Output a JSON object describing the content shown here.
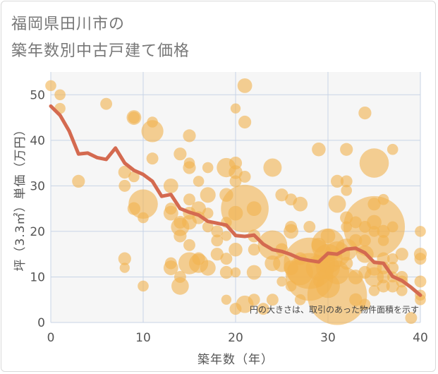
{
  "header": {
    "title_line1": "福岡県田川市の",
    "title_line2": "築年数別中古戸建て価格"
  },
  "chart_data": {
    "type": "scatter",
    "title": "福岡県田川市の築年数別中古戸建て価格",
    "xlabel": "築年数（年）",
    "ylabel": "坪（3.3㎡）単価（万円）",
    "xlim": [
      0,
      40
    ],
    "ylim": [
      0,
      55
    ],
    "xticks": [
      0,
      10,
      20,
      30,
      40
    ],
    "yticks": [
      0,
      10,
      20,
      30,
      40,
      50
    ],
    "grid": true,
    "note": "円の大きさは、取引のあった物件面積を示す",
    "colors": {
      "bubble": "#f2b24f",
      "trend": "#d46a50",
      "plot_bg": "#f6f6f6",
      "grid": "#c8d4e6"
    },
    "bubbles": [
      {
        "x": 0,
        "y": 52,
        "s": 1.2
      },
      {
        "x": 1,
        "y": 50,
        "s": 1.2
      },
      {
        "x": 1,
        "y": 47,
        "s": 1.2
      },
      {
        "x": 3,
        "y": 31,
        "s": 1.4
      },
      {
        "x": 6,
        "y": 48,
        "s": 1.3
      },
      {
        "x": 8,
        "y": 33,
        "s": 1.4
      },
      {
        "x": 8,
        "y": 30,
        "s": 1.3
      },
      {
        "x": 8,
        "y": 14,
        "s": 1.4
      },
      {
        "x": 8,
        "y": 12,
        "s": 1.1
      },
      {
        "x": 9,
        "y": 45,
        "s": 1.6
      },
      {
        "x": 9,
        "y": 45,
        "s": 1.3
      },
      {
        "x": 9,
        "y": 32,
        "s": 1.2
      },
      {
        "x": 9,
        "y": 25,
        "s": 1.4
      },
      {
        "x": 10,
        "y": 26,
        "s": 3.2
      },
      {
        "x": 10,
        "y": 23,
        "s": 1.2
      },
      {
        "x": 10,
        "y": 8,
        "s": 1.2
      },
      {
        "x": 11,
        "y": 44,
        "s": 1.2
      },
      {
        "x": 11,
        "y": 42,
        "s": 2.4
      },
      {
        "x": 11,
        "y": 36,
        "s": 1.3
      },
      {
        "x": 13,
        "y": 30,
        "s": 1.6
      },
      {
        "x": 13,
        "y": 25,
        "s": 1.3
      },
      {
        "x": 13,
        "y": 24,
        "s": 1.6
      },
      {
        "x": 13,
        "y": 13,
        "s": 1.3
      },
      {
        "x": 13,
        "y": 12,
        "s": 1.6
      },
      {
        "x": 14,
        "y": 37,
        "s": 1.4
      },
      {
        "x": 14,
        "y": 22,
        "s": 1.4
      },
      {
        "x": 14,
        "y": 21,
        "s": 2.0
      },
      {
        "x": 14,
        "y": 19,
        "s": 1.4
      },
      {
        "x": 14,
        "y": 10,
        "s": 1.3
      },
      {
        "x": 14,
        "y": 8,
        "s": 1.9
      },
      {
        "x": 15,
        "y": 41,
        "s": 1.4
      },
      {
        "x": 15,
        "y": 35,
        "s": 1.2
      },
      {
        "x": 15,
        "y": 34,
        "s": 1.4
      },
      {
        "x": 15,
        "y": 27,
        "s": 1.3
      },
      {
        "x": 15,
        "y": 24,
        "s": 1.4
      },
      {
        "x": 15,
        "y": 22,
        "s": 1.6
      },
      {
        "x": 15,
        "y": 17,
        "s": 1.3
      },
      {
        "x": 15,
        "y": 13,
        "s": 2.4
      },
      {
        "x": 16,
        "y": 31,
        "s": 1.2
      },
      {
        "x": 16,
        "y": 25,
        "s": 1.6
      },
      {
        "x": 16,
        "y": 23,
        "s": 1.4
      },
      {
        "x": 16,
        "y": 14,
        "s": 1.4
      },
      {
        "x": 16,
        "y": 13,
        "s": 2.1
      },
      {
        "x": 17,
        "y": 34,
        "s": 1.2
      },
      {
        "x": 17,
        "y": 28,
        "s": 1.7
      },
      {
        "x": 17,
        "y": 24,
        "s": 1.2
      },
      {
        "x": 17,
        "y": 21,
        "s": 1.2
      },
      {
        "x": 17,
        "y": 12,
        "s": 1.7
      },
      {
        "x": 18,
        "y": 20,
        "s": 1.3
      },
      {
        "x": 18,
        "y": 18,
        "s": 1.3
      },
      {
        "x": 18,
        "y": 15,
        "s": 1.4
      },
      {
        "x": 19,
        "y": 34,
        "s": 2.1
      },
      {
        "x": 19,
        "y": 28,
        "s": 1.5
      },
      {
        "x": 19,
        "y": 22,
        "s": 1.2
      },
      {
        "x": 19,
        "y": 19,
        "s": 1.1
      },
      {
        "x": 19,
        "y": 14,
        "s": 1.3
      },
      {
        "x": 19,
        "y": 11,
        "s": 1.4
      },
      {
        "x": 19,
        "y": 5,
        "s": 1.1
      },
      {
        "x": 20,
        "y": 47,
        "s": 1.1
      },
      {
        "x": 20,
        "y": 35,
        "s": 1.4
      },
      {
        "x": 20,
        "y": 33,
        "s": 1.5
      },
      {
        "x": 20,
        "y": 31,
        "s": 1.3
      },
      {
        "x": 20,
        "y": 24,
        "s": 1.6
      },
      {
        "x": 20,
        "y": 16,
        "s": 1.5
      },
      {
        "x": 20,
        "y": 11,
        "s": 1.1
      },
      {
        "x": 20,
        "y": 3,
        "s": 1.3
      },
      {
        "x": 21,
        "y": 52,
        "s": 1.6
      },
      {
        "x": 21,
        "y": 44,
        "s": 1.4
      },
      {
        "x": 21,
        "y": 32,
        "s": 1.3
      },
      {
        "x": 21,
        "y": 25,
        "s": 5.2
      },
      {
        "x": 21,
        "y": 4,
        "s": 1.9
      },
      {
        "x": 22,
        "y": 25,
        "s": 1.6
      },
      {
        "x": 22,
        "y": 19,
        "s": 1.4
      },
      {
        "x": 22,
        "y": 16,
        "s": 1.3
      },
      {
        "x": 22,
        "y": 11,
        "s": 1.6
      },
      {
        "x": 22,
        "y": 5,
        "s": 1.3
      },
      {
        "x": 23,
        "y": 3,
        "s": 1.3
      },
      {
        "x": 24,
        "y": 34,
        "s": 2.0
      },
      {
        "x": 24,
        "y": 17,
        "s": 3.2
      },
      {
        "x": 24,
        "y": 13,
        "s": 1.7
      },
      {
        "x": 24,
        "y": 5,
        "s": 1.3
      },
      {
        "x": 25,
        "y": 28,
        "s": 1.4
      },
      {
        "x": 25,
        "y": 16,
        "s": 1.4
      },
      {
        "x": 25,
        "y": 13,
        "s": 1.9
      },
      {
        "x": 25,
        "y": 9,
        "s": 1.1
      },
      {
        "x": 26,
        "y": 27,
        "s": 1.3
      },
      {
        "x": 26,
        "y": 21,
        "s": 1.3
      },
      {
        "x": 26,
        "y": 20,
        "s": 1.6
      },
      {
        "x": 26,
        "y": 12,
        "s": 1.6
      },
      {
        "x": 26,
        "y": 8,
        "s": 1.2
      },
      {
        "x": 27,
        "y": 26,
        "s": 1.6
      },
      {
        "x": 27,
        "y": 14,
        "s": 1.4
      },
      {
        "x": 27,
        "y": 11,
        "s": 2.8
      },
      {
        "x": 27,
        "y": 5,
        "s": 1.2
      },
      {
        "x": 28,
        "y": 21,
        "s": 1.3
      },
      {
        "x": 28,
        "y": 13,
        "s": 5.6
      },
      {
        "x": 28,
        "y": 10,
        "s": 5.2
      },
      {
        "x": 29,
        "y": 38,
        "s": 1.5
      },
      {
        "x": 29,
        "y": 17,
        "s": 1.6
      },
      {
        "x": 29,
        "y": 12,
        "s": 2.8
      },
      {
        "x": 29,
        "y": 9,
        "s": 1.2
      },
      {
        "x": 30,
        "y": 19,
        "s": 1.6
      },
      {
        "x": 30,
        "y": 17,
        "s": 3.6
      },
      {
        "x": 30,
        "y": 14,
        "s": 3.2
      },
      {
        "x": 30,
        "y": 12,
        "s": 2.6
      },
      {
        "x": 30,
        "y": 8,
        "s": 2.6
      },
      {
        "x": 31,
        "y": 31,
        "s": 1.4
      },
      {
        "x": 31,
        "y": 26,
        "s": 1.9
      },
      {
        "x": 31,
        "y": 15,
        "s": 2.8
      },
      {
        "x": 31,
        "y": 11,
        "s": 2.6
      },
      {
        "x": 31,
        "y": 6,
        "s": 6.5
      },
      {
        "x": 32,
        "y": 38,
        "s": 1.4
      },
      {
        "x": 32,
        "y": 31,
        "s": 1.3
      },
      {
        "x": 32,
        "y": 29,
        "s": 1.2
      },
      {
        "x": 32,
        "y": 23,
        "s": 1.4
      },
      {
        "x": 32,
        "y": 21,
        "s": 1.2
      },
      {
        "x": 32,
        "y": 16,
        "s": 2.4
      },
      {
        "x": 32,
        "y": 13,
        "s": 1.4
      },
      {
        "x": 33,
        "y": 22,
        "s": 1.3
      },
      {
        "x": 33,
        "y": 18,
        "s": 1.4
      },
      {
        "x": 33,
        "y": 10,
        "s": 1.6
      },
      {
        "x": 33,
        "y": 5,
        "s": 1.4
      },
      {
        "x": 34,
        "y": 46,
        "s": 1.4
      },
      {
        "x": 34,
        "y": 21,
        "s": 1.3
      },
      {
        "x": 34,
        "y": 18,
        "s": 1.3
      },
      {
        "x": 34,
        "y": 15,
        "s": 1.9
      },
      {
        "x": 34,
        "y": 11,
        "s": 1.4
      },
      {
        "x": 34,
        "y": 4,
        "s": 1.2
      },
      {
        "x": 35,
        "y": 35,
        "s": 3.2
      },
      {
        "x": 35,
        "y": 26,
        "s": 1.4
      },
      {
        "x": 35,
        "y": 22,
        "s": 1.6
      },
      {
        "x": 35,
        "y": 21,
        "s": 6.7
      },
      {
        "x": 35,
        "y": 20,
        "s": 1.2
      },
      {
        "x": 35,
        "y": 12,
        "s": 1.7
      },
      {
        "x": 35,
        "y": 10,
        "s": 2.1
      },
      {
        "x": 35,
        "y": 7,
        "s": 1.2
      },
      {
        "x": 36,
        "y": 27,
        "s": 1.2
      },
      {
        "x": 36,
        "y": 20,
        "s": 1.4
      },
      {
        "x": 36,
        "y": 18,
        "s": 1.2
      },
      {
        "x": 36,
        "y": 14,
        "s": 1.4
      },
      {
        "x": 36,
        "y": 12,
        "s": 1.4
      },
      {
        "x": 36,
        "y": 10,
        "s": 1.4
      },
      {
        "x": 36,
        "y": 8,
        "s": 1.4
      },
      {
        "x": 37,
        "y": 38,
        "s": 1.2
      },
      {
        "x": 37,
        "y": 21,
        "s": 1.2
      },
      {
        "x": 37,
        "y": 14,
        "s": 1.2
      },
      {
        "x": 37,
        "y": 12,
        "s": 1.3
      },
      {
        "x": 37,
        "y": 10,
        "s": 1.2
      },
      {
        "x": 37,
        "y": 8,
        "s": 1.4
      },
      {
        "x": 38,
        "y": 15,
        "s": 1.4
      },
      {
        "x": 38,
        "y": 10,
        "s": 1.3
      },
      {
        "x": 38,
        "y": 9,
        "s": 1.3
      },
      {
        "x": 38,
        "y": 7,
        "s": 1.2
      },
      {
        "x": 39,
        "y": 1,
        "s": 1.3
      },
      {
        "x": 40,
        "y": 20,
        "s": 1.2
      },
      {
        "x": 40,
        "y": 15,
        "s": 1.4
      },
      {
        "x": 40,
        "y": 14,
        "s": 1.3
      },
      {
        "x": 40,
        "y": 9,
        "s": 1.3
      },
      {
        "x": 40,
        "y": 6,
        "s": 1.2
      },
      {
        "x": 40,
        "y": 5,
        "s": 1.2
      }
    ],
    "trend": {
      "x": [
        0,
        1,
        2,
        3,
        4,
        5,
        6,
        7,
        8,
        9,
        10,
        11,
        12,
        13,
        14,
        15,
        16,
        17,
        18,
        19,
        20,
        21,
        22,
        23,
        24,
        25,
        26,
        27,
        28,
        29,
        30,
        31,
        32,
        33,
        34,
        35,
        36,
        37,
        38,
        39,
        40
      ],
      "y": [
        47.5,
        45.5,
        42,
        37,
        37.2,
        36.2,
        35.8,
        38.3,
        35,
        33.4,
        32.5,
        31,
        27.7,
        28.1,
        25,
        24.2,
        23.6,
        22.2,
        21.8,
        21.4,
        19.1,
        18.9,
        19.2,
        17.2,
        16,
        15.6,
        14.9,
        14,
        13.6,
        13.3,
        15.2,
        15,
        16.1,
        16.3,
        15.3,
        13.2,
        13,
        10.1,
        9.2,
        7.7,
        6
      ]
    }
  }
}
